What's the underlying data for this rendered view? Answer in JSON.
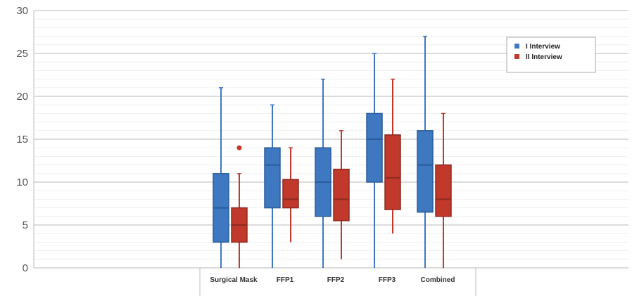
{
  "chart_data": {
    "type": "boxplot",
    "ylim": [
      0,
      30
    ],
    "y_ticks": [
      "0",
      "5",
      "10",
      "15",
      "20",
      "25",
      "30"
    ],
    "grid": true,
    "legend_position": "top-right",
    "categories": [
      "Surgical Mask",
      "FFP1",
      "FFP2",
      "FFP3",
      "Combined"
    ],
    "series": [
      {
        "name": "I Interview",
        "color": "#3d78c0",
        "boxes": [
          {
            "min": 0,
            "q1": 3,
            "median": 7,
            "q3": 11,
            "max": 21,
            "outliers": []
          },
          {
            "min": 0,
            "q1": 7,
            "median": 12,
            "q3": 14,
            "max": 19,
            "outliers": []
          },
          {
            "min": 0,
            "q1": 6,
            "median": 10,
            "q3": 14,
            "max": 22,
            "outliers": []
          },
          {
            "min": 0,
            "q1": 10,
            "median": 15,
            "q3": 18,
            "max": 25,
            "outliers": []
          },
          {
            "min": 0,
            "q1": 6.5,
            "median": 12,
            "q3": 16,
            "max": 27,
            "outliers": []
          }
        ]
      },
      {
        "name": "II Interview",
        "color": "#c0392b",
        "boxes": [
          {
            "min": 0,
            "q1": 3,
            "median": 5,
            "q3": 7,
            "max": 11,
            "outliers": [
              14
            ]
          },
          {
            "min": 3,
            "q1": 7,
            "median": 8,
            "q3": 10.3,
            "max": 14,
            "outliers": []
          },
          {
            "min": 1,
            "q1": 5.5,
            "median": 8,
            "q3": 11.5,
            "max": 16,
            "outliers": []
          },
          {
            "min": 4,
            "q1": 6.8,
            "median": 10.5,
            "q3": 15.5,
            "max": 22,
            "outliers": []
          },
          {
            "min": 0,
            "q1": 6,
            "median": 8,
            "q3": 12,
            "max": 18,
            "outliers": []
          }
        ]
      }
    ]
  }
}
